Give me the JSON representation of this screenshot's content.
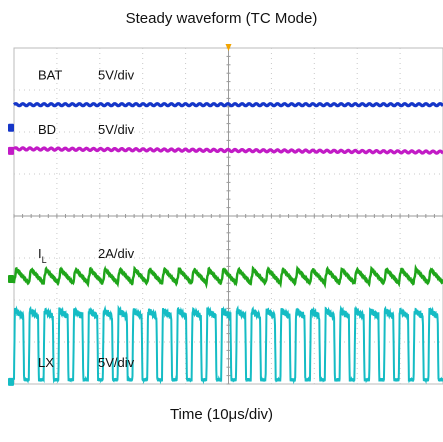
{
  "chart_data": {
    "type": "line",
    "title": "Steady waveform (TC Mode)",
    "xlabel": "Time (10μs/div)",
    "ylabel": "",
    "grid": true,
    "x_unit": "μs",
    "x_divisions": 10,
    "y_divisions": 8,
    "x_per_division": 10,
    "x_range": [
      0,
      100
    ],
    "trigger_position_us": 50,
    "switching_cycles_shown": 29,
    "switching_period_us": 3.45,
    "series": [
      {
        "name": "BAT",
        "scale": "5V/div",
        "scale_label": "5V/div",
        "sub": "",
        "color": "#1536c8",
        "waveform": "dc",
        "offset_div": 6.65,
        "dc_level_div": 0.0
      },
      {
        "name": "BD",
        "scale": "5V/div",
        "scale_label": "5V/div",
        "sub": "",
        "color": "#c21bc6",
        "waveform": "dc_slight_slope",
        "offset_div": 5.6,
        "dc_level_div": 0.0
      },
      {
        "name": "I",
        "scale": "2A/div",
        "scale_label": "2A/div",
        "sub": "L",
        "color": "#1fa51a",
        "waveform": "sawtooth",
        "offset_div": 2.55,
        "ripple_div": 0.15
      },
      {
        "name": "LX",
        "scale": "5V/div",
        "scale_label": "5V/div",
        "sub": "",
        "color": "#15bcc4",
        "waveform": "switching",
        "offset_div": 0.1,
        "high_div": 1.65
      }
    ]
  }
}
